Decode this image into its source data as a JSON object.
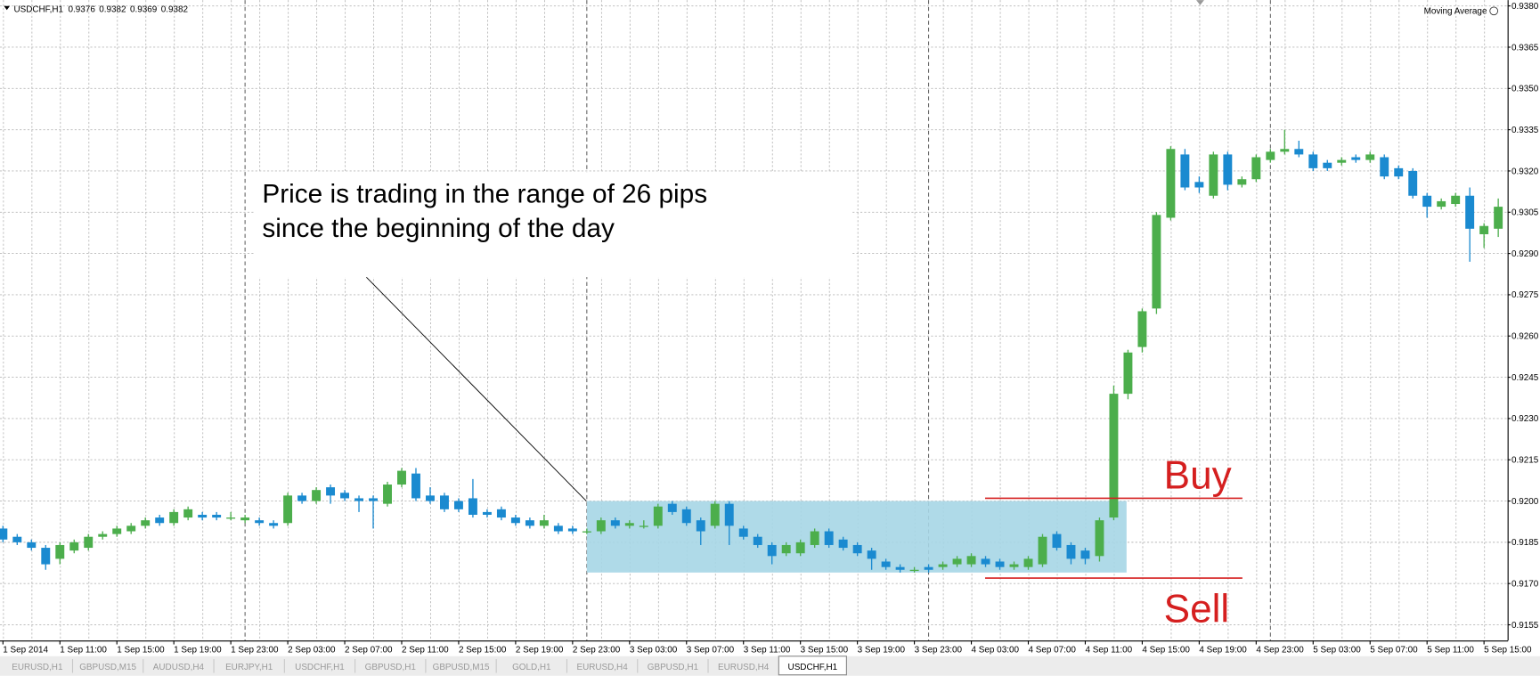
{
  "chart_data": {
    "type": "candlestick",
    "symbol": "USDCHF,H1",
    "header_values": [
      0.9376,
      0.9382,
      0.9369,
      0.9382
    ],
    "indicator": "Moving Average",
    "categories": [
      "1 Sep 2014",
      null,
      null,
      null,
      "1 Sep 11:00",
      null,
      null,
      null,
      "1 Sep 15:00",
      null,
      null,
      null,
      "1 Sep 19:00",
      null,
      null,
      null,
      "1 Sep 23:00",
      null,
      null,
      null,
      "2 Sep 03:00",
      null,
      null,
      null,
      "2 Sep 07:00",
      null,
      null,
      null,
      "2 Sep 11:00",
      null,
      null,
      null,
      "2 Sep 15:00",
      null,
      null,
      null,
      "2 Sep 19:00",
      null,
      null,
      null,
      "2 Sep 23:00",
      null,
      null,
      null,
      "3 Sep 03:00",
      null,
      null,
      null,
      "3 Sep 07:00",
      null,
      null,
      null,
      "3 Sep 11:00",
      null,
      null,
      null,
      "3 Sep 15:00",
      null,
      null,
      null,
      "3 Sep 19:00",
      null,
      null,
      null,
      "3 Sep 23:00",
      null,
      null,
      null,
      "4 Sep 03:00",
      null,
      null,
      null,
      "4 Sep 07:00",
      null,
      null,
      null,
      "4 Sep 11:00",
      null,
      null,
      null,
      "4 Sep 15:00",
      null,
      null,
      null,
      "4 Sep 19:00",
      null,
      null,
      null,
      "4 Sep 23:00",
      null,
      null,
      null,
      "5 Sep 03:00",
      null,
      null,
      null,
      "5 Sep 07:00",
      null,
      null,
      null,
      "5 Sep 11:00",
      null,
      null,
      null,
      "5 Sep 15:00",
      null
    ],
    "open": [
      0.919,
      0.9187,
      0.9185,
      0.9183,
      0.9179,
      0.9182,
      0.9183,
      0.9187,
      0.9188,
      0.9189,
      0.9191,
      0.9194,
      0.9192,
      0.9194,
      0.9195,
      0.9195,
      0.9194,
      0.9193,
      0.9193,
      0.9192,
      0.9192,
      0.9202,
      0.92,
      0.9205,
      0.9203,
      0.9201,
      0.9201,
      0.9199,
      0.9206,
      0.921,
      0.9202,
      0.9202,
      0.92,
      0.9201,
      0.9196,
      0.9197,
      0.9194,
      0.9193,
      0.9191,
      0.9191,
      0.919,
      0.9189,
      0.9189,
      0.9193,
      0.9191,
      0.9191,
      0.9191,
      0.9199,
      0.9197,
      0.9193,
      0.9191,
      0.9199,
      0.919,
      0.9187,
      0.9184,
      0.9181,
      0.9181,
      0.9184,
      0.9189,
      0.9186,
      0.9184,
      0.9182,
      0.9178,
      0.9176,
      0.9175,
      0.9176,
      0.9176,
      0.9177,
      0.9177,
      0.9179,
      0.9178,
      0.9176,
      0.9176,
      0.9177,
      0.9188,
      0.9184,
      0.9182,
      0.918,
      0.9194,
      0.9239,
      0.9256,
      0.927,
      0.9303,
      0.9326,
      0.9316,
      0.9311,
      0.9326,
      0.9315,
      0.9317,
      0.9324,
      0.9327,
      0.9328,
      0.9326,
      0.9323,
      0.9323,
      0.9325,
      0.9324,
      0.9325,
      0.9321,
      0.932,
      0.9311,
      0.9307,
      0.9308,
      0.9311,
      0.9297,
      0.9299
    ],
    "high": [
      0.9191,
      0.9188,
      0.9186,
      0.9184,
      0.9185,
      0.9186,
      0.9188,
      0.9189,
      0.9191,
      0.9192,
      0.9194,
      0.9195,
      0.9197,
      0.9198,
      0.9196,
      0.9196,
      0.9196,
      0.9195,
      0.9194,
      0.9193,
      0.9203,
      0.9203,
      0.9205,
      0.9206,
      0.9204,
      0.9202,
      0.9202,
      0.9207,
      0.9212,
      0.9212,
      0.9205,
      0.9203,
      0.9201,
      0.9208,
      0.9197,
      0.9198,
      0.9195,
      0.9194,
      0.9195,
      0.9192,
      0.9191,
      0.919,
      0.9194,
      0.9194,
      0.9193,
      0.9193,
      0.9199,
      0.92,
      0.9198,
      0.9194,
      0.92,
      0.92,
      0.9191,
      0.9188,
      0.9185,
      0.9185,
      0.9186,
      0.919,
      0.919,
      0.9187,
      0.9185,
      0.9183,
      0.9179,
      0.9177,
      0.9176,
      0.9177,
      0.9178,
      0.918,
      0.9181,
      0.918,
      0.9179,
      0.9178,
      0.918,
      0.9188,
      0.9189,
      0.9185,
      0.9183,
      0.9194,
      0.9242,
      0.9255,
      0.927,
      0.9305,
      0.9329,
      0.9328,
      0.9318,
      0.9327,
      0.9327,
      0.9318,
      0.9326,
      0.9328,
      0.9335,
      0.9331,
      0.9327,
      0.9324,
      0.9325,
      0.9326,
      0.9327,
      0.9326,
      0.9322,
      0.9321,
      0.9312,
      0.931,
      0.9312,
      0.9314,
      0.9301,
      0.931
    ],
    "low": [
      0.9185,
      0.9184,
      0.9182,
      0.9175,
      0.9177,
      0.9181,
      0.9182,
      0.9186,
      0.9187,
      0.9188,
      0.919,
      0.9191,
      0.9191,
      0.9193,
      0.9193,
      0.9193,
      0.9193,
      0.9192,
      0.9191,
      0.919,
      0.9191,
      0.9199,
      0.9199,
      0.9199,
      0.92,
      0.9196,
      0.919,
      0.9198,
      0.9205,
      0.92,
      0.9199,
      0.9196,
      0.9196,
      0.9194,
      0.9194,
      0.9193,
      0.9191,
      0.919,
      0.919,
      0.9188,
      0.9188,
      0.9188,
      0.9188,
      0.919,
      0.919,
      0.919,
      0.919,
      0.9195,
      0.9191,
      0.9184,
      0.919,
      0.9184,
      0.9186,
      0.9183,
      0.9177,
      0.918,
      0.918,
      0.9183,
      0.9183,
      0.9182,
      0.918,
      0.9175,
      0.9175,
      0.9174,
      0.9174,
      0.9174,
      0.9175,
      0.9176,
      0.9176,
      0.9176,
      0.9175,
      0.9175,
      0.9175,
      0.9176,
      0.9182,
      0.9177,
      0.9177,
      0.9178,
      0.9193,
      0.9237,
      0.9254,
      0.9268,
      0.9302,
      0.9313,
      0.9312,
      0.931,
      0.9313,
      0.9314,
      0.9316,
      0.9323,
      0.9326,
      0.9325,
      0.932,
      0.932,
      0.9322,
      0.9323,
      0.9323,
      0.9317,
      0.9317,
      0.931,
      0.9303,
      0.9306,
      0.9307,
      0.9287,
      0.9292,
      0.9296
    ],
    "close": [
      0.9186,
      0.9185,
      0.9183,
      0.9177,
      0.9184,
      0.9185,
      0.9187,
      0.9188,
      0.919,
      0.9191,
      0.9193,
      0.9192,
      0.9196,
      0.9197,
      0.9194,
      0.9194,
      0.9194,
      0.9194,
      0.9192,
      0.9191,
      0.9202,
      0.92,
      0.9204,
      0.9202,
      0.9201,
      0.92,
      0.92,
      0.9206,
      0.9211,
      0.9201,
      0.92,
      0.9197,
      0.9197,
      0.9195,
      0.9195,
      0.9194,
      0.9192,
      0.9191,
      0.9193,
      0.9189,
      0.9189,
      0.9189,
      0.9193,
      0.9191,
      0.9192,
      0.9191,
      0.9198,
      0.9196,
      0.9192,
      0.9189,
      0.9199,
      0.9191,
      0.9187,
      0.9184,
      0.918,
      0.9184,
      0.9185,
      0.9189,
      0.9184,
      0.9183,
      0.9181,
      0.9179,
      0.9176,
      0.9175,
      0.9175,
      0.9175,
      0.9177,
      0.9179,
      0.918,
      0.9177,
      0.9176,
      0.9177,
      0.9179,
      0.9187,
      0.9183,
      0.9179,
      0.9179,
      0.9193,
      0.9239,
      0.9254,
      0.9269,
      0.9304,
      0.9328,
      0.9314,
      0.9314,
      0.9326,
      0.9315,
      0.9317,
      0.9325,
      0.9327,
      0.9328,
      0.9326,
      0.9321,
      0.9321,
      0.9324,
      0.9324,
      0.9326,
      0.9318,
      0.9318,
      0.9311,
      0.9307,
      0.9309,
      0.9311,
      0.9299,
      0.93,
      0.9307
    ],
    "up_color": "#4cae4c",
    "down_color": "#1a8ad0",
    "ylim": [
      0.91493,
      0.93821
    ],
    "yticks": [
      0.9155,
      {
        "value": 0.917,
        "label": "0.9170"
      },
      0.9185,
      {
        "value": 0.92,
        "label": "0.9200"
      },
      0.9215,
      {
        "value": 0.923,
        "label": "0.9230"
      },
      0.9245,
      {
        "value": 0.926,
        "label": "0.9260"
      },
      0.9275,
      {
        "value": 0.929,
        "label": "0.9290"
      },
      0.9305,
      {
        "value": 0.932,
        "label": "0.9320"
      },
      0.9335,
      {
        "value": 0.935,
        "label": "0.9350"
      },
      0.9365,
      {
        "value": 0.938,
        "label": "0.9380"
      }
    ],
    "grid": true,
    "range": {
      "high": 0.92,
      "low": 0.9174,
      "color": "#a6d6e6"
    },
    "levels": [
      {
        "label": "Buy",
        "value": 0.9201
      },
      {
        "label": "Sell",
        "value": 0.9172
      }
    ],
    "level_color": "#d51f1f",
    "annotation": {
      "lines": [
        "Price is trading in the range of 26 pips",
        "since the beginning of the day"
      ]
    }
  },
  "tabs": [
    {
      "label": "EURUSD,H1"
    },
    {
      "label": "GBPUSD,M15"
    },
    {
      "label": "AUDUSD,H4"
    },
    {
      "label": "EURJPY,H1"
    },
    {
      "label": "USDCHF,H1"
    },
    {
      "label": "GBPUSD,H1"
    },
    {
      "label": "GBPUSD,M15"
    },
    {
      "label": "GOLD,H1"
    },
    {
      "label": "EURUSD,H4"
    },
    {
      "label": "GBPUSD,H1"
    },
    {
      "label": "EURUSD,H4"
    },
    {
      "label": "USDCHF,H1",
      "active": true
    }
  ]
}
